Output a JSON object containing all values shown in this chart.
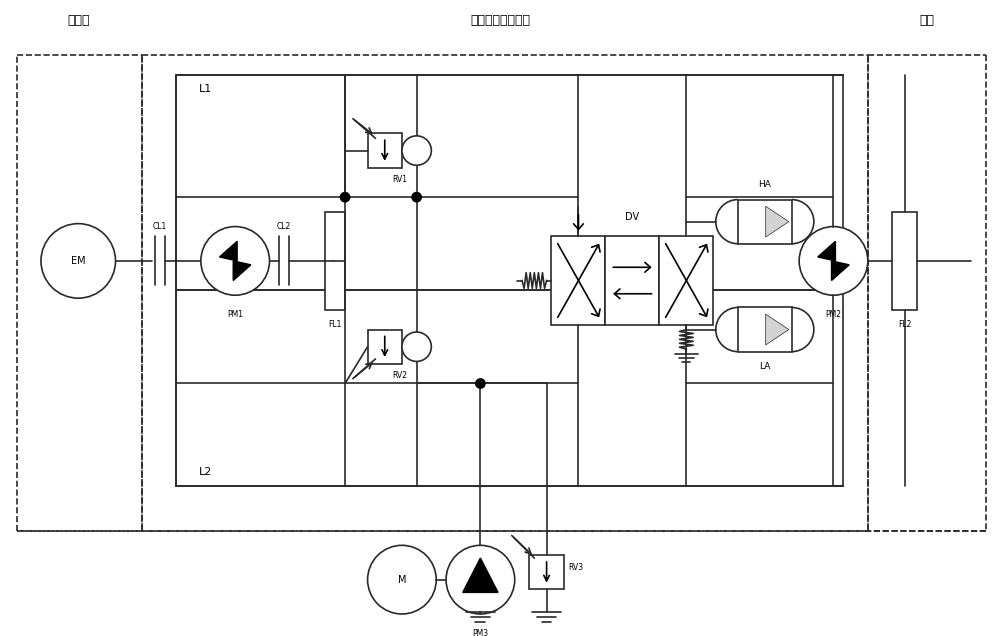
{
  "title_main": "机液混合驱动系统",
  "title_left": "动力源",
  "title_right": "负载",
  "bg_color": "#ffffff",
  "line_color": "#2a2a2a",
  "lw": 1.2
}
